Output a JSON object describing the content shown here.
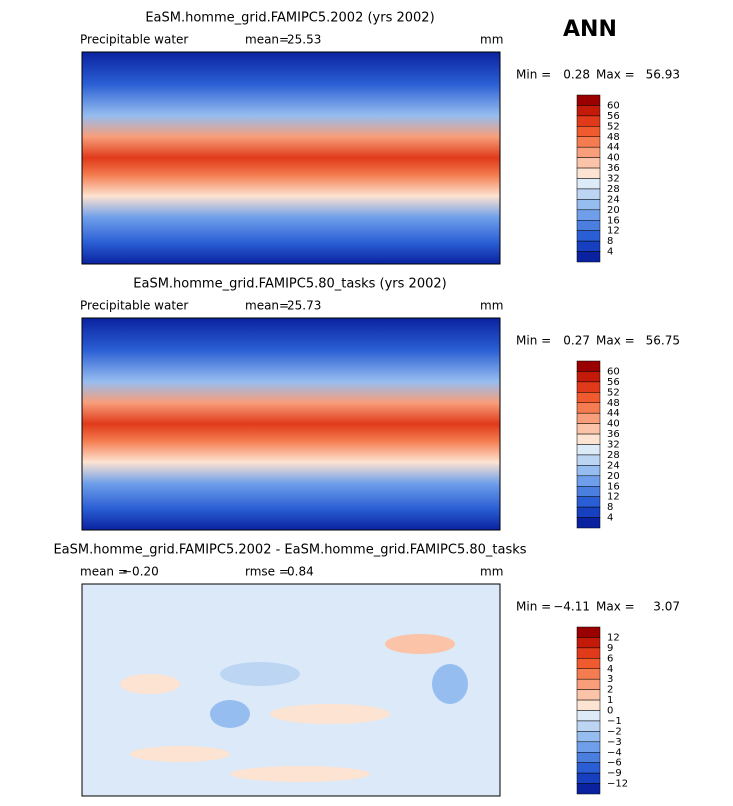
{
  "label": "ANN",
  "panels": [
    {
      "title": "EaSM.homme_grid.FAMIPC5.2002 (yrs 2002)",
      "variable": "Precipitable water",
      "stats": [
        {
          "label": "mean=",
          "value": "25.53"
        }
      ],
      "units": "mm",
      "min_label": "Min =",
      "min": "0.28",
      "max_label": "Max =",
      "max": "56.93",
      "colorbar": {
        "levels": [
          "60",
          "56",
          "52",
          "48",
          "44",
          "40",
          "36",
          "32",
          "28",
          "24",
          "20",
          "16",
          "12",
          "8",
          "4"
        ],
        "colors": [
          "#9b0000",
          "#c41a0a",
          "#e03a1a",
          "#ef5a2e",
          "#f47c50",
          "#f89e7a",
          "#fbc3a8",
          "#fde3d1",
          "#ddeaf8",
          "#bcd5f3",
          "#96bdf0",
          "#6f9fea",
          "#4a7fe0",
          "#2a5ed4",
          "#1640c0",
          "#0a22a0"
        ]
      }
    },
    {
      "title": "EaSM.homme_grid.FAMIPC5.80_tasks (yrs 2002)",
      "variable": "Precipitable water",
      "stats": [
        {
          "label": "mean=",
          "value": "25.73"
        }
      ],
      "units": "mm",
      "min_label": "Min =",
      "min": "0.27",
      "max_label": "Max =",
      "max": "56.75",
      "colorbar": {
        "levels": [
          "60",
          "56",
          "52",
          "48",
          "44",
          "40",
          "36",
          "32",
          "28",
          "24",
          "20",
          "16",
          "12",
          "8",
          "4"
        ],
        "colors": [
          "#9b0000",
          "#c41a0a",
          "#e03a1a",
          "#ef5a2e",
          "#f47c50",
          "#f89e7a",
          "#fbc3a8",
          "#fde3d1",
          "#ddeaf8",
          "#bcd5f3",
          "#96bdf0",
          "#6f9fea",
          "#4a7fe0",
          "#2a5ed4",
          "#1640c0",
          "#0a22a0"
        ]
      }
    },
    {
      "title": "EaSM.homme_grid.FAMIPC5.2002 - EaSM.homme_grid.FAMIPC5.80_tasks",
      "stats": [
        {
          "label": "mean =",
          "value": "−0.20"
        },
        {
          "label": "rmse =",
          "value": "0.84"
        }
      ],
      "units": "mm",
      "min_label": "Min =",
      "min": "−4.11",
      "max_label": "Max =",
      "max": "3.07",
      "colorbar": {
        "levels": [
          "12",
          "9",
          "6",
          "4",
          "3",
          "2",
          "1",
          "0",
          "−1",
          "−2",
          "−3",
          "−4",
          "−6",
          "−9",
          "−12"
        ],
        "colors": [
          "#9b0000",
          "#c41a0a",
          "#e03a1a",
          "#ef5a2e",
          "#f47c50",
          "#f89e7a",
          "#fbc3a8",
          "#fde3d1",
          "#ddeaf8",
          "#bcd5f3",
          "#96bdf0",
          "#6f9fea",
          "#4a7fe0",
          "#2a5ed4",
          "#1640c0",
          "#0a22a0"
        ]
      }
    }
  ]
}
